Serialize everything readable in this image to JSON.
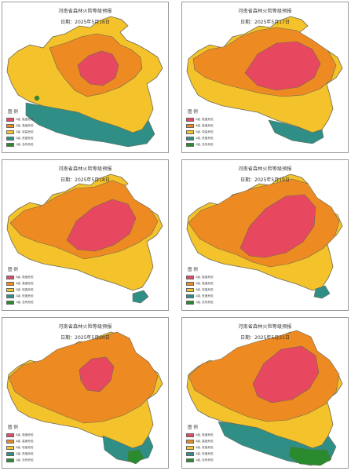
{
  "colors": {
    "level5": "#e8485f",
    "level4": "#ee8a22",
    "level3": "#f4c22a",
    "level2": "#2f8f87",
    "level1": "#2a8a2e",
    "border": "#6a6a55"
  },
  "legend": {
    "title": "图  例",
    "items": [
      {
        "label": "5级, 极度危险",
        "color": "#e8485f"
      },
      {
        "label": "4级, 高度危险",
        "color": "#ee8a22"
      },
      {
        "label": "3级, 较高危险",
        "color": "#f4c22a"
      },
      {
        "label": "2级, 低度危险",
        "color": "#2f8f87"
      },
      {
        "label": "1级, 没有危险",
        "color": "#2a8a2e"
      }
    ]
  },
  "panels": [
    {
      "title": "河南省森林火险等级预报",
      "date": "日期：2025年5月16日",
      "levels": [
        3,
        4,
        5,
        2
      ]
    },
    {
      "title": "河南省森林火险等级预报",
      "date": "日期：2025年5月17日",
      "levels": [
        3,
        4,
        5,
        2
      ]
    },
    {
      "title": "河南省森林火险等级预报",
      "date": "日期：2025年5月18日",
      "levels": [
        3,
        4,
        5,
        2
      ]
    },
    {
      "title": "河南省森林火险等级预报",
      "date": "日期：2025年5月19日",
      "levels": [
        3,
        4,
        5,
        2
      ]
    },
    {
      "title": "河南省森林火险等级预报",
      "date": "日期：2025年5月20日",
      "levels": [
        3,
        4,
        5,
        2,
        1
      ]
    },
    {
      "title": "河南省森林火险等级预报",
      "date": "日期：2025年5月21日",
      "levels": [
        3,
        4,
        5,
        2,
        1
      ]
    }
  ]
}
